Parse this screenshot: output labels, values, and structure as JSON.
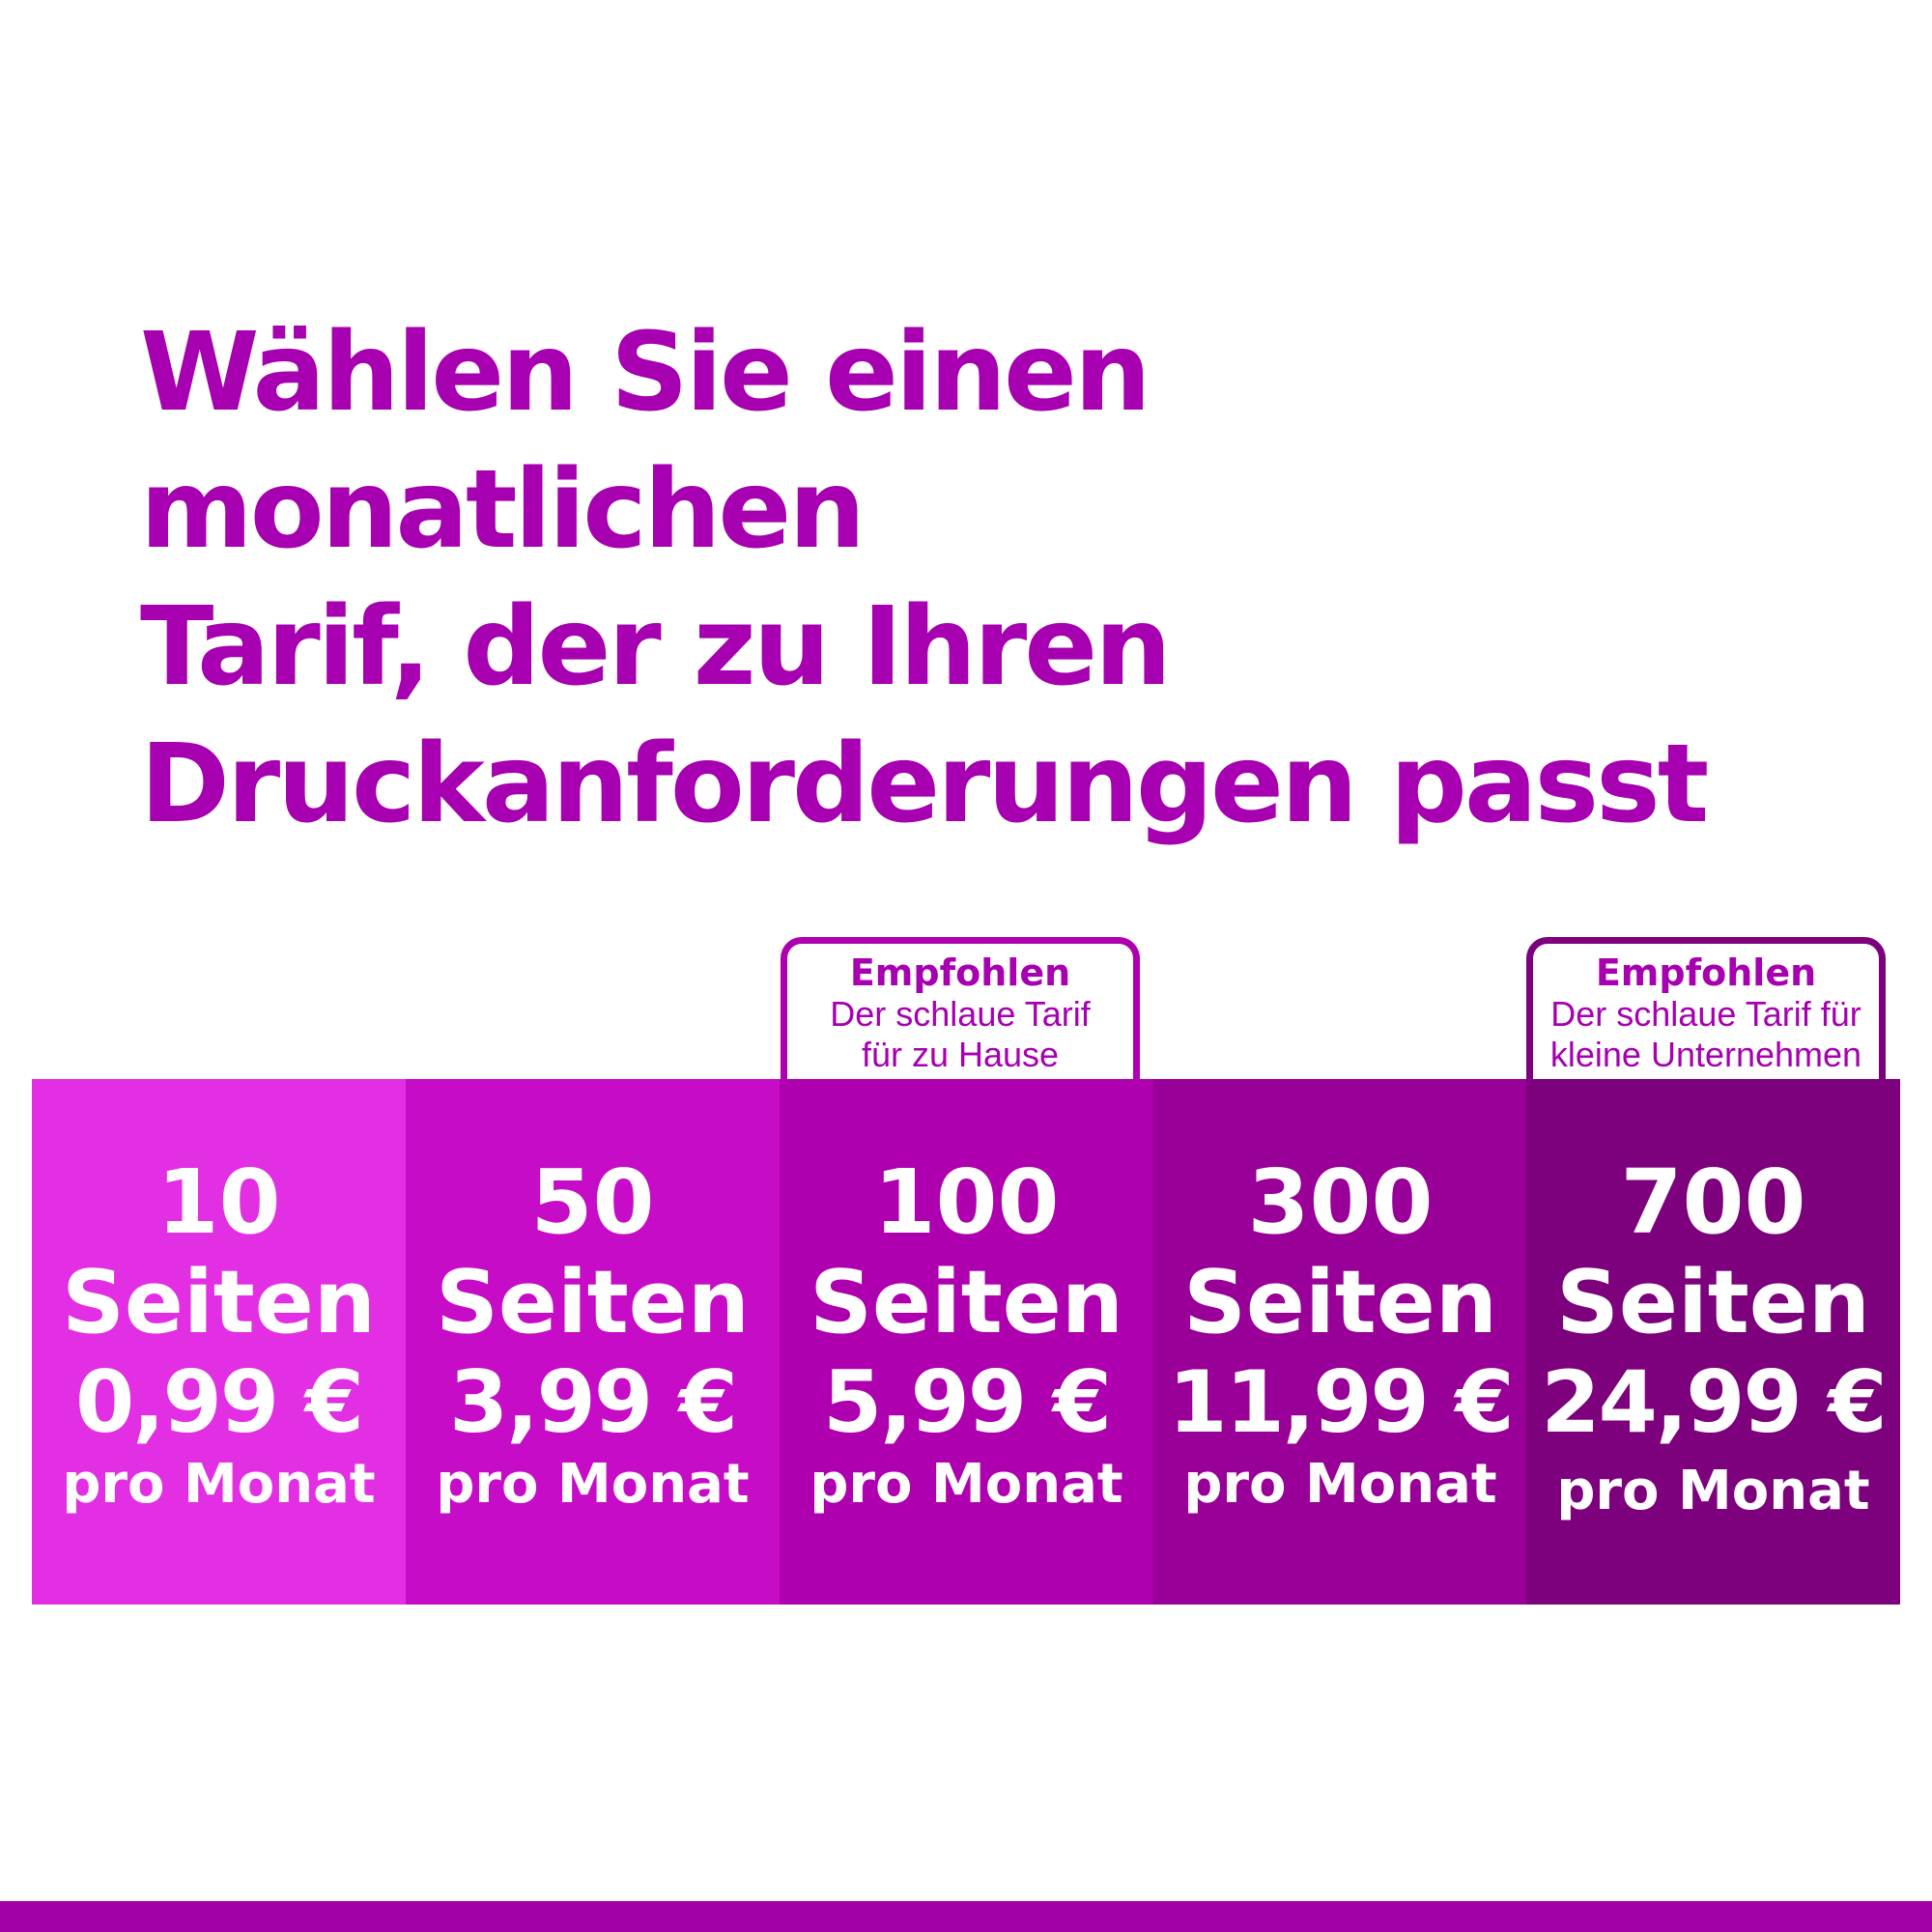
{
  "heading": {
    "lines": [
      "Wählen Sie einen monatlichen",
      "Tarif, der zu Ihren",
      "Druckanforderungen passt"
    ]
  },
  "plans": [
    {
      "pages": "10",
      "unit": "Seiten",
      "price": "0,99 €",
      "period": "pro Monat",
      "color": "#e32fe3"
    },
    {
      "pages": "50",
      "unit": "Seiten",
      "price": "3,99 €",
      "period": "pro Monat",
      "color": "#c60cc6"
    },
    {
      "pages": "100",
      "unit": "Seiten",
      "price": "5,99 €",
      "period": "pro Monat",
      "color": "#ae00ae",
      "badge": {
        "title": "Empfohlen",
        "line1": "Der schlaue Tarif",
        "line2": "für zu Hause"
      }
    },
    {
      "pages": "300",
      "unit": "Seiten",
      "price": "11,99 €",
      "period": "pro Monat",
      "color": "#980098"
    },
    {
      "pages": "700",
      "unit": "Seiten",
      "price": "24,99 €",
      "period": "pro Monat",
      "color": "#7d007d",
      "badge": {
        "title": "Empfohlen",
        "line1": "Der schlaue Tarif für",
        "line2": "kleine Unternehmen"
      }
    }
  ],
  "colors": {
    "heading": "#a600b0",
    "footer_bar": "#a300a8"
  }
}
